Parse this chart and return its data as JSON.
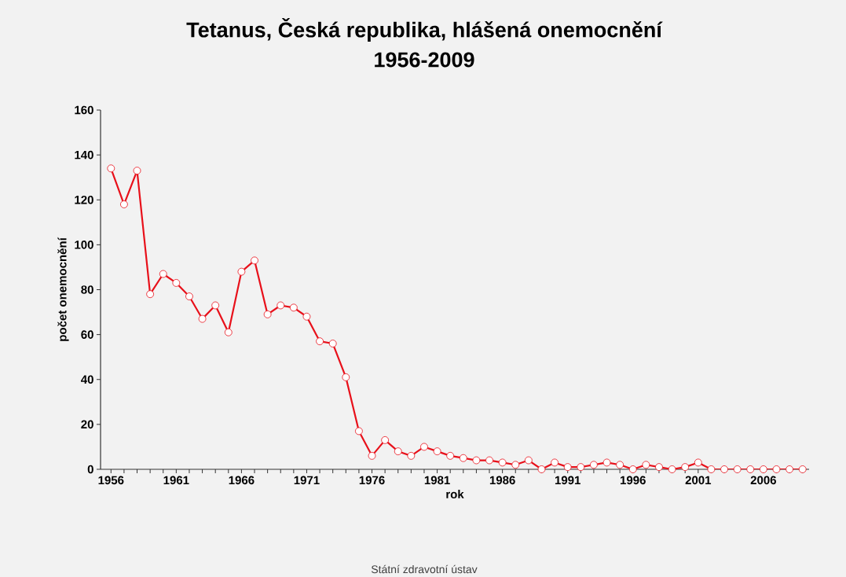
{
  "chart_data": {
    "type": "line",
    "title": "Tetanus, Česká republika, hlášená onemocnění",
    "subtitle": "1956-2009",
    "xlabel": "rok",
    "ylabel": "počet onemocnění",
    "annotations": [
      "Státní zdravotní ústav"
    ],
    "categories": [
      "1956",
      null,
      null,
      null,
      null,
      "1961",
      null,
      null,
      null,
      null,
      "1966",
      null,
      null,
      null,
      null,
      "1971",
      null,
      null,
      null,
      null,
      "1976",
      null,
      null,
      null,
      null,
      "1981",
      null,
      null,
      null,
      null,
      "1986",
      null,
      null,
      null,
      null,
      "1991",
      null,
      null,
      null,
      null,
      "1996",
      null,
      null,
      null,
      null,
      "2001",
      null,
      null,
      null,
      null,
      "2006",
      null,
      null,
      null
    ],
    "series": [
      {
        "color": "#e8101a",
        "values": [
          134,
          118,
          133,
          78,
          87,
          83,
          77,
          67,
          73,
          61,
          88,
          93,
          69,
          73,
          72,
          68,
          57,
          56,
          41,
          17,
          6,
          13,
          8,
          6,
          10,
          8,
          6,
          5,
          4,
          4,
          3,
          2,
          4,
          0,
          3,
          1,
          1,
          2,
          3,
          2,
          0,
          2,
          1,
          0,
          1,
          3,
          0,
          0,
          0,
          0,
          0,
          0,
          0,
          0
        ]
      }
    ],
    "ylim": [
      0,
      160
    ],
    "yticks": [
      0,
      20,
      40,
      60,
      80,
      100,
      120,
      140,
      160
    ],
    "marker": "circle",
    "line_style": "solid"
  }
}
